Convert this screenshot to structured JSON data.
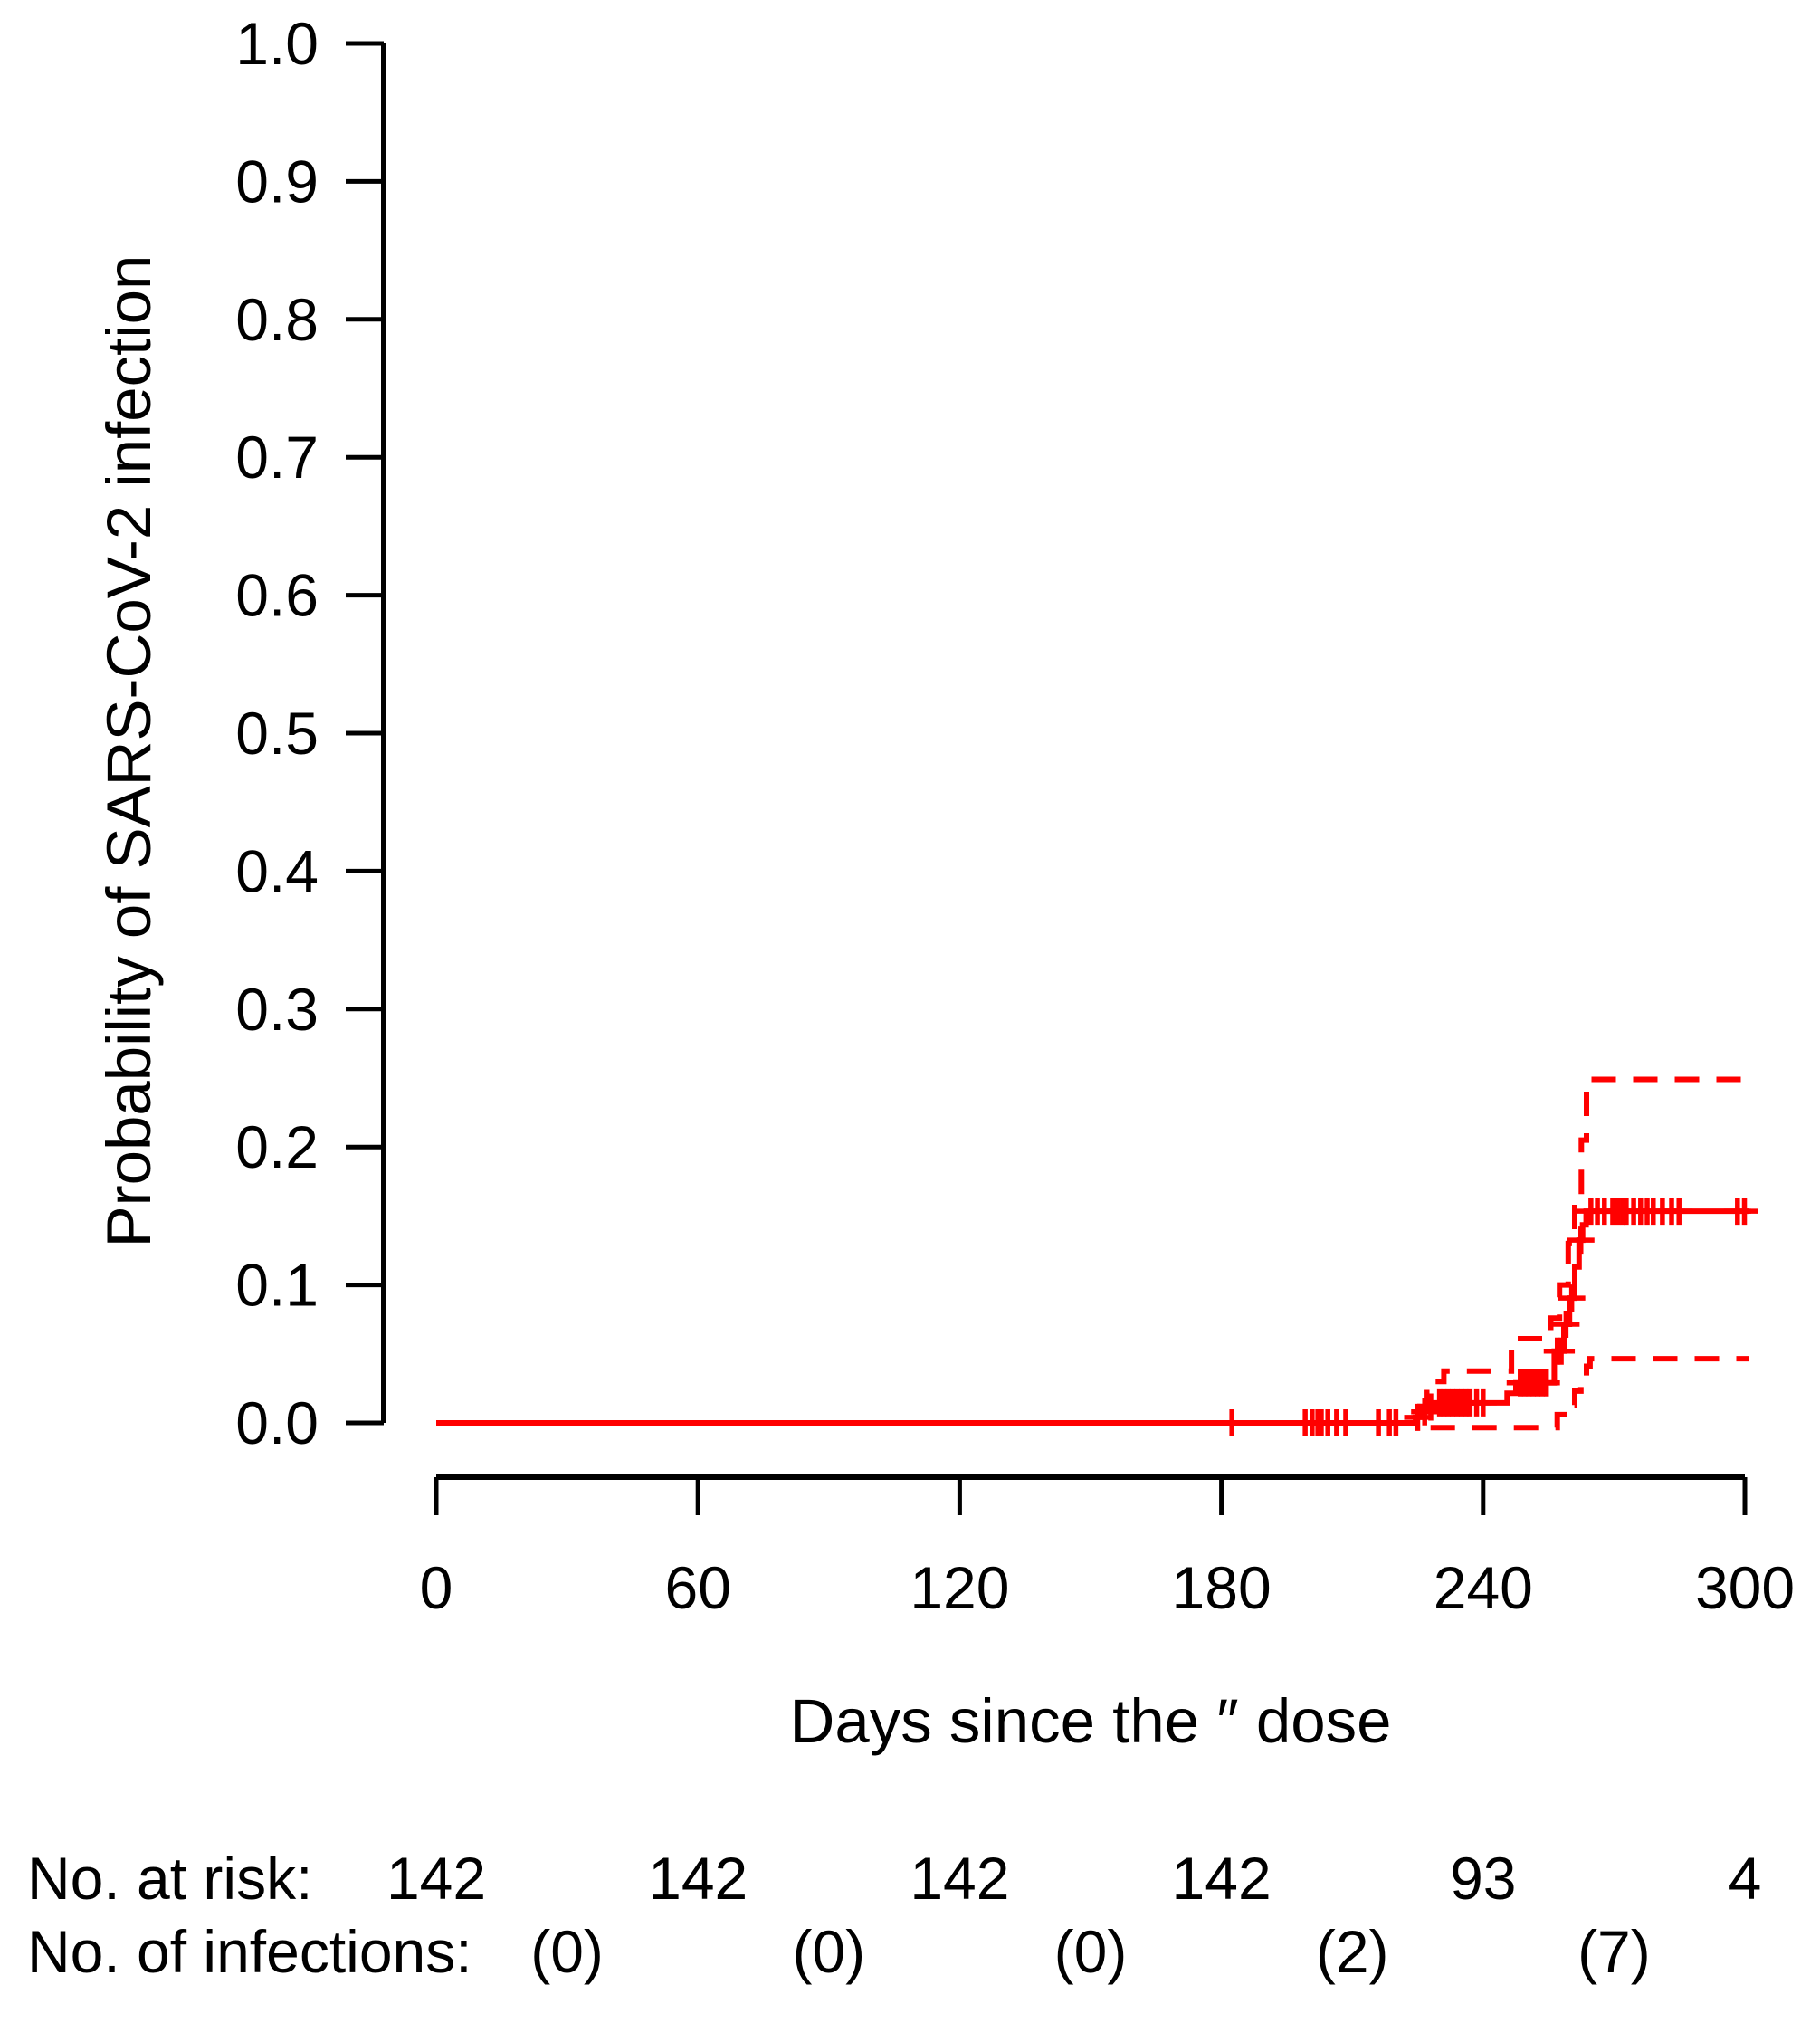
{
  "figure": {
    "background": "#ffffff",
    "axis_color": "#000000",
    "curve_color": "#ff0000"
  },
  "chart_data": {
    "type": "line",
    "subtype": "kaplan-meier cumulative incidence step curve with dashed 95% confidence interval and censoring plus-marks",
    "title": "",
    "xlabel": "Days since the ″ dose",
    "ylabel": "Probability of SARS-CoV-2 infection",
    "xlim": [
      0,
      300
    ],
    "ylim": [
      0.0,
      1.0
    ],
    "grid": false,
    "legend_position": "none",
    "x_ticks": [
      0,
      60,
      120,
      180,
      240,
      300
    ],
    "x_tick_labels": [
      "0",
      "60",
      "120",
      "180",
      "240",
      "300"
    ],
    "y_ticks": [
      0.0,
      0.1,
      0.2,
      0.3,
      0.4,
      0.5,
      0.6,
      0.7,
      0.8,
      0.9,
      1.0
    ],
    "y_tick_labels": [
      "0.0",
      "0.1",
      "0.2",
      "0.3",
      "0.4",
      "0.5",
      "0.6",
      "0.7",
      "0.8",
      "0.9",
      "1.0"
    ],
    "line_color": "#ff0000",
    "series": [
      {
        "name": "Cumulative probability of SARS-CoV-2 infection",
        "style": "solid",
        "color": "#ff0000",
        "end_x": 301,
        "steps": [
          [
            0,
            0
          ],
          [
            224.5,
            0.004
          ],
          [
            226,
            0.008
          ],
          [
            227.5,
            0.0115
          ],
          [
            229,
            0.0145
          ],
          [
            245.5,
            0.0215
          ],
          [
            247.5,
            0.029
          ],
          [
            256.3,
            0.052
          ],
          [
            258.5,
            0.0715
          ],
          [
            259.8,
            0.0905
          ],
          [
            261,
            0.113
          ],
          [
            262,
            0.1325
          ],
          [
            262.8,
            0.1435
          ],
          [
            263.6,
            0.1535
          ]
        ]
      },
      {
        "name": "Upper 95% confidence limit",
        "style": "dashed",
        "color": "#ff0000",
        "end_x": 301,
        "steps": [
          [
            0,
            0
          ],
          [
            225.5,
            0.012
          ],
          [
            227,
            0.022
          ],
          [
            229,
            0.03
          ],
          [
            231,
            0.0375
          ],
          [
            246.5,
            0.061
          ],
          [
            255.5,
            0.076
          ],
          [
            257.5,
            0.1
          ],
          [
            259.5,
            0.13
          ],
          [
            261,
            0.165
          ],
          [
            262.5,
            0.205
          ],
          [
            263.7,
            0.249
          ]
        ]
      },
      {
        "name": "Lower 95% confidence limit",
        "style": "dashed",
        "color": "#ff0000",
        "end_x": 301,
        "steps": [
          [
            0,
            0
          ],
          [
            224.5,
            -0.0035
          ],
          [
            257,
            0.006
          ],
          [
            259.3,
            0.013
          ],
          [
            261,
            0.023
          ],
          [
            262.4,
            0.032
          ],
          [
            263.7,
            0.041
          ],
          [
            264.5,
            0.0465
          ]
        ]
      }
    ],
    "censor_marks": [
      [
        182.4,
        0
      ],
      [
        199.2,
        0
      ],
      [
        200.8,
        0
      ],
      [
        202.1,
        0
      ],
      [
        202.9,
        0
      ],
      [
        204.4,
        0
      ],
      [
        206.4,
        0
      ],
      [
        208.5,
        0
      ],
      [
        216,
        0
      ],
      [
        218.5,
        0
      ],
      [
        220,
        0
      ],
      [
        225,
        0.004
      ],
      [
        226.6,
        0.008
      ],
      [
        228,
        0.0115
      ],
      [
        230,
        0.0145
      ],
      [
        231,
        0.0145
      ],
      [
        232,
        0.0145
      ],
      [
        233,
        0.0145
      ],
      [
        234,
        0.0145
      ],
      [
        235,
        0.0145
      ],
      [
        236,
        0.0145
      ],
      [
        237,
        0.0145
      ],
      [
        238.5,
        0.0145
      ],
      [
        240,
        0.0145
      ],
      [
        248.5,
        0.029
      ],
      [
        249.5,
        0.029
      ],
      [
        250.5,
        0.029
      ],
      [
        251.5,
        0.029
      ],
      [
        252.5,
        0.029
      ],
      [
        253.5,
        0.029
      ],
      [
        254.5,
        0.029
      ],
      [
        257,
        0.052
      ],
      [
        257.9,
        0.052
      ],
      [
        259,
        0.0715
      ],
      [
        260.3,
        0.0905
      ],
      [
        262.4,
        0.1325
      ],
      [
        264.7,
        0.1535
      ],
      [
        266.2,
        0.1535
      ],
      [
        267.8,
        0.1535
      ],
      [
        269.7,
        0.1535
      ],
      [
        270.9,
        0.1535
      ],
      [
        272,
        0.1535
      ],
      [
        272.8,
        0.1535
      ],
      [
        274.5,
        0.1535
      ],
      [
        276.1,
        0.1535
      ],
      [
        277.6,
        0.1535
      ],
      [
        279,
        0.1535
      ],
      [
        281.1,
        0.1535
      ],
      [
        283.2,
        0.1535
      ],
      [
        284.9,
        0.1535
      ],
      [
        298.3,
        0.1535
      ],
      [
        299.9,
        0.1535
      ]
    ],
    "risk_table": {
      "rows": [
        {
          "label": "No. at risk:",
          "values": [
            "142",
            "142",
            "142",
            "142",
            "93",
            "4"
          ],
          "at_days": [
            0,
            60,
            120,
            180,
            240,
            300
          ]
        },
        {
          "label": "No. of infections:",
          "values": [
            "(0)",
            "(0)",
            "(0)",
            "(2)",
            "(7)"
          ],
          "at_days": [
            30,
            90,
            150,
            210,
            270
          ]
        }
      ]
    }
  }
}
